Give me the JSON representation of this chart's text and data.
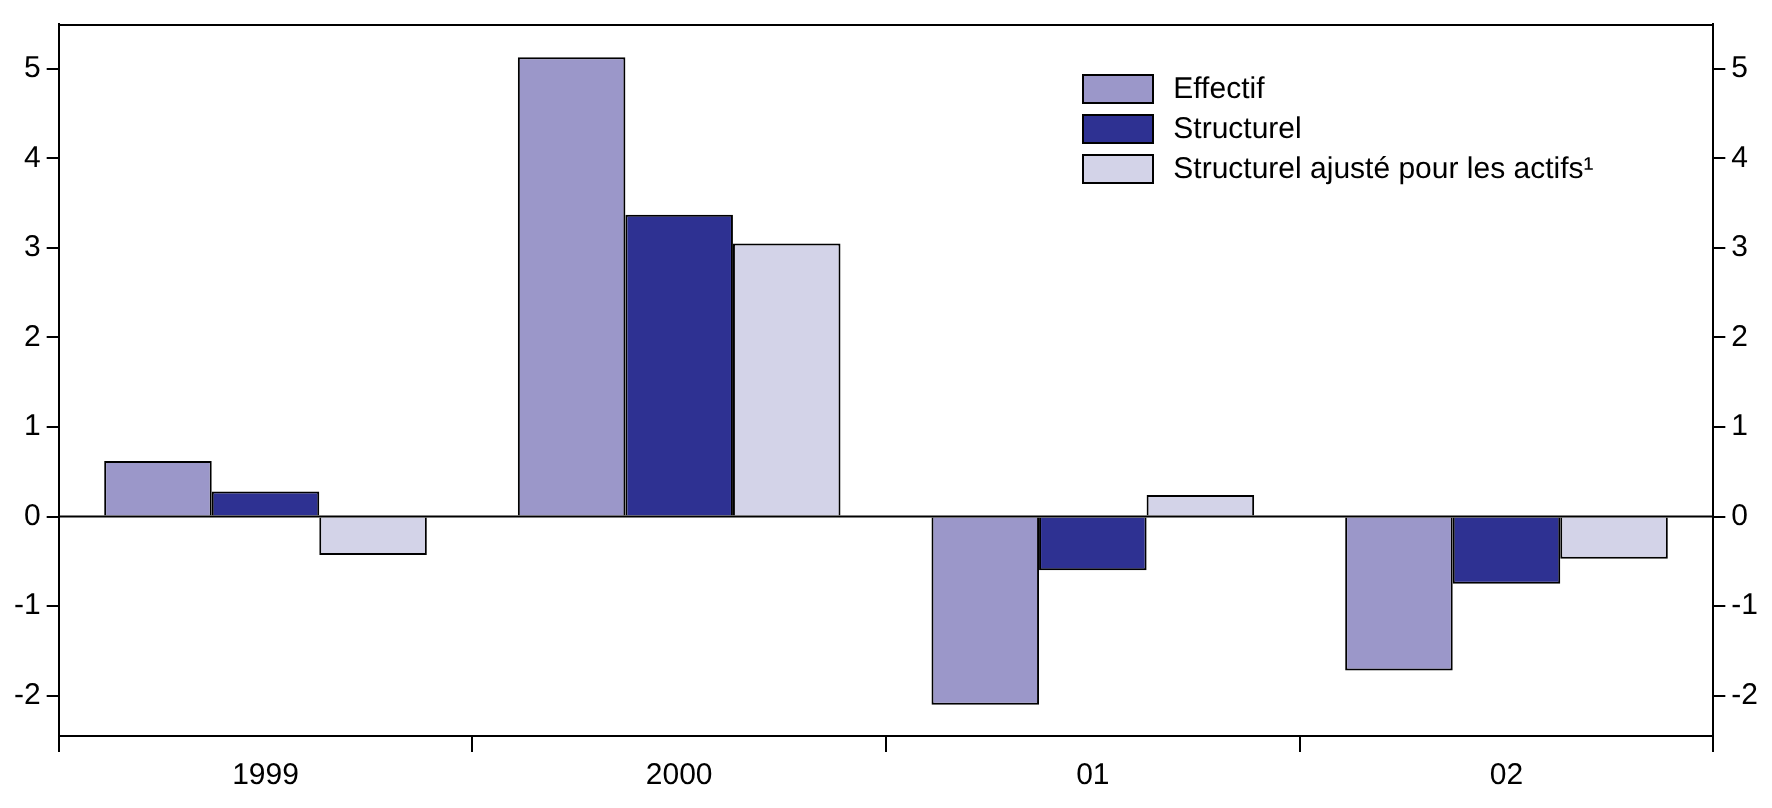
{
  "chart_data": {
    "type": "bar",
    "categories": [
      "1999",
      "2000",
      "01",
      "02"
    ],
    "series": [
      {
        "name": "Effectif",
        "color": "#9b97c9",
        "values": [
          0.62,
          5.13,
          -2.1,
          -1.72
        ]
      },
      {
        "name": "Structurel",
        "color": "#2e3192",
        "values": [
          0.28,
          3.37,
          -0.6,
          -0.75
        ]
      },
      {
        "name": "Structurel ajusté pour les actifs¹",
        "color": "#d3d3e8",
        "values": [
          -0.43,
          3.05,
          0.24,
          -0.47
        ]
      }
    ],
    "ylim": [
      -2.45,
      5.5
    ],
    "yticks": [
      -2,
      -1,
      0,
      1,
      2,
      3,
      4,
      5
    ],
    "y2lim": [
      -2.45,
      5.5
    ],
    "y2ticks": [
      -2,
      -1,
      0,
      1,
      2,
      3,
      4,
      5
    ],
    "ref_lines": [
      {
        "axis": "y",
        "value": 0
      }
    ],
    "grid": false,
    "legend": "top right"
  }
}
